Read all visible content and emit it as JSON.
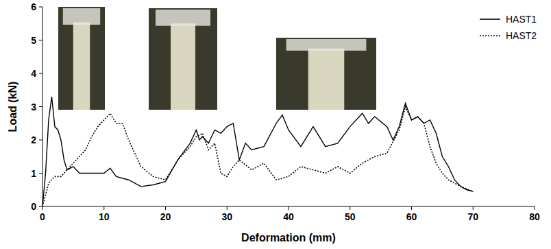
{
  "chart_data": {
    "type": "line",
    "x_label": "Deformation (mm)",
    "y_label": "Load (kN)",
    "xlim": [
      0,
      80
    ],
    "ylim": [
      0,
      6
    ],
    "xticks": [
      0,
      10,
      20,
      30,
      40,
      50,
      60,
      70,
      80
    ],
    "yticks": [
      0,
      1,
      2,
      3,
      4,
      5,
      6
    ],
    "grid": false,
    "legend": "upper right",
    "series": [
      {
        "name": "HAST1",
        "color": "#000000",
        "line_style": "solid",
        "x": [
          0,
          0.5,
          1,
          1.5,
          2,
          2.5,
          3,
          3.5,
          4,
          5,
          6,
          8,
          10,
          11,
          12,
          14,
          16,
          18,
          20,
          22,
          24,
          25,
          25.5,
          26,
          27,
          28,
          29,
          30,
          31,
          32,
          33,
          34,
          36,
          38,
          39,
          40,
          42,
          44,
          46,
          48,
          50,
          52,
          53,
          54,
          56,
          57,
          58,
          59,
          60,
          61,
          62,
          63,
          64,
          65,
          66,
          67,
          68,
          69,
          70
        ],
        "values": [
          0,
          1.0,
          2.6,
          3.3,
          2.4,
          2.3,
          2.0,
          1.4,
          1.1,
          1.2,
          1.0,
          1.0,
          1.0,
          1.15,
          0.9,
          0.8,
          0.6,
          0.65,
          0.75,
          1.4,
          1.9,
          2.3,
          2.0,
          2.1,
          1.9,
          2.3,
          2.2,
          2.4,
          2.5,
          1.4,
          1.9,
          1.7,
          1.8,
          2.5,
          2.75,
          2.3,
          1.8,
          2.4,
          1.8,
          1.9,
          2.4,
          2.8,
          2.5,
          2.7,
          2.4,
          2.0,
          2.4,
          3.1,
          2.6,
          2.7,
          2.5,
          2.6,
          2.2,
          1.5,
          1.2,
          0.8,
          0.6,
          0.5,
          0.45
        ]
      },
      {
        "name": "HAST2",
        "color": "#000000",
        "line_style": "dotted",
        "x": [
          0,
          1,
          2,
          3,
          4,
          5,
          6,
          7,
          8,
          9,
          10,
          11,
          12,
          13,
          14,
          15,
          16,
          18,
          20,
          22,
          24,
          25,
          26,
          27,
          28,
          29,
          30,
          31,
          32,
          34,
          36,
          38,
          40,
          42,
          44,
          46,
          48,
          50,
          52,
          54,
          56,
          58,
          59,
          60,
          61,
          62,
          63,
          64,
          65,
          66,
          67,
          68,
          70
        ],
        "values": [
          0,
          0.7,
          0.9,
          0.9,
          1.1,
          1.3,
          1.5,
          1.7,
          2.1,
          2.4,
          2.6,
          2.8,
          2.5,
          2.5,
          2.0,
          1.6,
          1.2,
          0.9,
          0.8,
          1.4,
          1.8,
          2.1,
          2.2,
          1.7,
          1.9,
          1.0,
          0.9,
          1.2,
          1.4,
          1.1,
          1.3,
          0.8,
          0.9,
          1.2,
          1.1,
          1.0,
          1.2,
          1.0,
          1.3,
          1.5,
          1.6,
          2.3,
          3.0,
          2.6,
          2.7,
          2.5,
          1.8,
          1.3,
          1.0,
          0.8,
          0.7,
          0.6,
          0.45
        ]
      }
    ]
  }
}
